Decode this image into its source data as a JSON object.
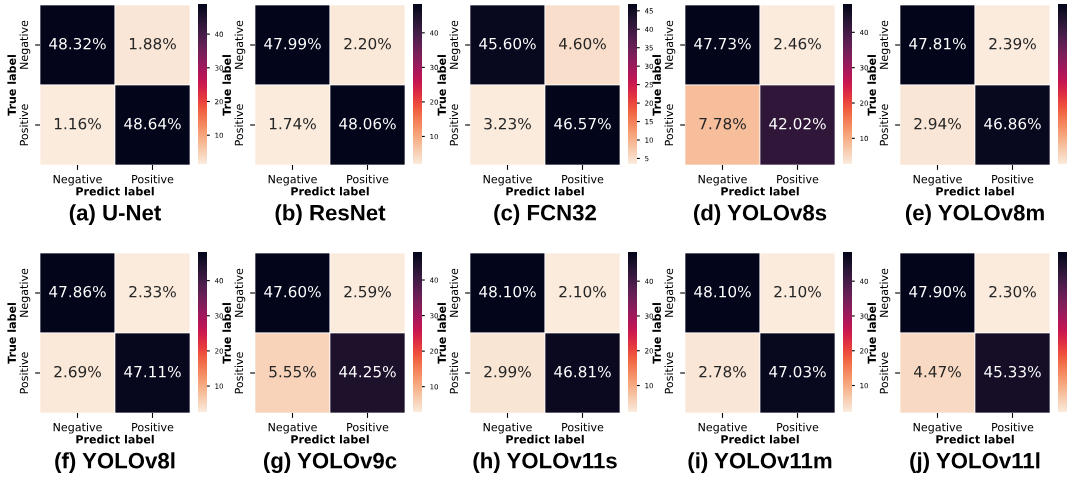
{
  "chart_data": [
    {
      "type": "heatmap",
      "title": "(a) U-Net",
      "xlabel": "Predict label",
      "ylabel": "True label",
      "categories": [
        "Negative",
        "Positive"
      ],
      "y_categories": [
        "Negative",
        "Positive"
      ],
      "cells": [
        [
          48.32,
          1.88
        ],
        [
          1.16,
          48.64
        ]
      ],
      "cell_labels": [
        [
          "48.32%",
          "1.88%"
        ],
        [
          "1.16%",
          "48.64%"
        ]
      ],
      "clim": [
        1.16,
        48.64
      ],
      "cticks": [
        10,
        20,
        30,
        40
      ]
    },
    {
      "type": "heatmap",
      "title": "(b) ResNet",
      "xlabel": "Predict label",
      "ylabel": "True label",
      "categories": [
        "Negative",
        "Positive"
      ],
      "y_categories": [
        "Negative",
        "Positive"
      ],
      "cells": [
        [
          47.99,
          2.2
        ],
        [
          1.74,
          48.06
        ]
      ],
      "cell_labels": [
        [
          "47.99%",
          "2.20%"
        ],
        [
          "1.74%",
          "48.06%"
        ]
      ],
      "clim": [
        1.74,
        48.06
      ],
      "cticks": [
        10,
        20,
        30,
        40
      ]
    },
    {
      "type": "heatmap",
      "title": "(c) FCN32",
      "xlabel": "Predict label",
      "ylabel": "True label",
      "categories": [
        "Negative",
        "Positive"
      ],
      "y_categories": [
        "Negative",
        "Positive"
      ],
      "cells": [
        [
          45.6,
          4.6
        ],
        [
          3.23,
          46.57
        ]
      ],
      "cell_labels": [
        [
          "45.60%",
          "4.60%"
        ],
        [
          "3.23%",
          "46.57%"
        ]
      ],
      "clim": [
        3.23,
        46.57
      ],
      "cticks": [
        5,
        10,
        15,
        20,
        25,
        30,
        35,
        40,
        45
      ]
    },
    {
      "type": "heatmap",
      "title": "(d) YOLOv8s",
      "xlabel": "Predict label",
      "ylabel": "True label",
      "categories": [
        "Negative",
        "Positive"
      ],
      "y_categories": [
        "Negative",
        "Positive"
      ],
      "cells": [
        [
          47.73,
          2.46
        ],
        [
          7.78,
          42.02
        ]
      ],
      "cell_labels": [
        [
          "47.73%",
          "2.46%"
        ],
        [
          "7.78%",
          "42.02%"
        ]
      ],
      "clim": [
        2.46,
        47.73
      ],
      "cticks": [
        10,
        20,
        30,
        40
      ]
    },
    {
      "type": "heatmap",
      "title": "(e) YOLOv8m",
      "xlabel": "Predict label",
      "ylabel": "True label",
      "categories": [
        "Negative",
        "Positive"
      ],
      "y_categories": [
        "Negative",
        "Positive"
      ],
      "cells": [
        [
          47.81,
          2.39
        ],
        [
          2.94,
          46.86
        ]
      ],
      "cell_labels": [
        [
          "47.81%",
          "2.39%"
        ],
        [
          "2.94%",
          "46.86%"
        ]
      ]
    },
    {
      "type": "heatmap",
      "title": "(f) YOLOv8l",
      "xlabel": "Predict label",
      "ylabel": "True label",
      "categories": [
        "Negative",
        "Positive"
      ],
      "y_categories": [
        "Negative",
        "Positive"
      ],
      "cells": [
        [
          47.86,
          2.33
        ],
        [
          2.69,
          47.11
        ]
      ],
      "cell_labels": [
        [
          "47.86%",
          "2.33%"
        ],
        [
          "2.69%",
          "47.11%"
        ]
      ],
      "clim": [
        2.33,
        47.86
      ],
      "cticks": [
        10,
        20,
        30,
        40
      ]
    },
    {
      "type": "heatmap",
      "title": "(g) YOLOv9c",
      "xlabel": "Predict label",
      "ylabel": "True label",
      "categories": [
        "Negative",
        "Positive"
      ],
      "y_categories": [
        "Negative",
        "Positive"
      ],
      "cells": [
        [
          47.6,
          2.59
        ],
        [
          5.55,
          44.25
        ]
      ],
      "cell_labels": [
        [
          "47.60%",
          "2.59%"
        ],
        [
          "5.55%",
          "44.25%"
        ]
      ],
      "clim": [
        2.59,
        47.6
      ],
      "cticks": [
        10,
        20,
        30,
        40
      ]
    },
    {
      "type": "heatmap",
      "title": "(h) YOLOv11s",
      "xlabel": "Predict label",
      "ylabel": "True label",
      "categories": [
        "Negative",
        "Positive"
      ],
      "y_categories": [
        "Negative",
        "Positive"
      ],
      "cells": [
        [
          48.1,
          2.1
        ],
        [
          2.99,
          46.81
        ]
      ],
      "cell_labels": [
        [
          "48.10%",
          "2.10%"
        ],
        [
          "2.99%",
          "46.81%"
        ]
      ],
      "clim": [
        2.1,
        48.1
      ],
      "cticks": [
        10,
        20,
        30,
        40
      ]
    },
    {
      "type": "heatmap",
      "title": "(i) YOLOv11m",
      "xlabel": "Predict label",
      "ylabel": "True label",
      "categories": [
        "Negative",
        "Positive"
      ],
      "y_categories": [
        "Negative",
        "Positive"
      ],
      "cells": [
        [
          48.1,
          2.1
        ],
        [
          2.78,
          47.03
        ]
      ],
      "cell_labels": [
        [
          "48.10%",
          "2.10%"
        ],
        [
          "2.78%",
          "47.03%"
        ]
      ],
      "clim": [
        2.1,
        48.1
      ],
      "cticks": [
        10,
        20,
        30,
        40
      ]
    },
    {
      "type": "heatmap",
      "title": "(j) YOLOv11l",
      "xlabel": "Predict label",
      "ylabel": "True label",
      "categories": [
        "Negative",
        "Positive"
      ],
      "y_categories": [
        "Negative",
        "Positive"
      ],
      "cells": [
        [
          47.9,
          2.3
        ],
        [
          4.47,
          45.33
        ]
      ],
      "cell_labels": [
        [
          "47.90%",
          "2.30%"
        ],
        [
          "4.47%",
          "45.33%"
        ]
      ]
    }
  ]
}
